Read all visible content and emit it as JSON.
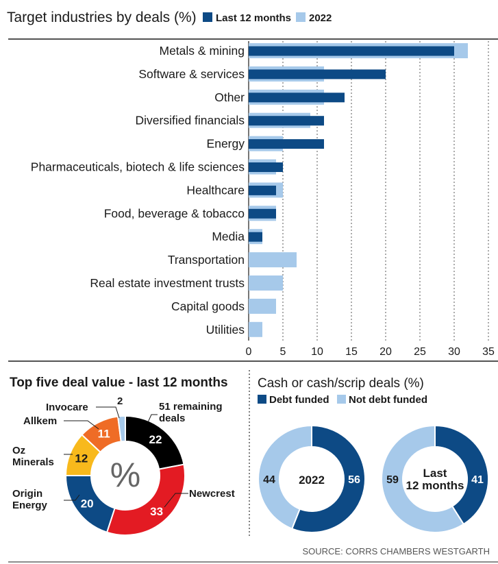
{
  "colors": {
    "dark_blue": "#0d4a85",
    "light_blue": "#a6c9ea",
    "red": "#e31b23",
    "black": "#000000",
    "orange": "#ef6c26",
    "yellow": "#f8b91c",
    "text": "#1a1a1a",
    "source_text": "#555555"
  },
  "chart_data": [
    {
      "type": "bar",
      "orientation": "horizontal",
      "title": "Target industries by deals (%)",
      "categories": [
        "Metals & mining",
        "Software & services",
        "Other",
        "Diversified financials",
        "Energy",
        "Pharmaceuticals, biotech & life sciences",
        "Healthcare",
        "Food, beverage & tobacco",
        "Media",
        "Transportation",
        "Real estate investment trusts",
        "Capital goods",
        "Utilities"
      ],
      "series": [
        {
          "name": "Last 12 months",
          "color": "#0d4a85",
          "values": [
            30,
            20,
            14,
            11,
            11,
            5,
            4,
            4,
            2,
            0,
            0,
            0,
            0
          ]
        },
        {
          "name": "2022",
          "color": "#a6c9ea",
          "values": [
            32,
            11,
            11,
            9,
            5,
            4,
            5,
            4,
            2,
            7,
            5,
            4,
            2
          ]
        }
      ],
      "xlim": [
        0,
        35
      ],
      "xticks": [
        "0",
        "5",
        "10",
        "15",
        "20",
        "25",
        "30",
        "35"
      ],
      "grid": true,
      "legend": "top"
    },
    {
      "type": "pie",
      "variant": "donut",
      "title": "Top five deal value - last 12 months",
      "center_label": "%",
      "slices": [
        {
          "label": "51 remaining deals",
          "value": 22,
          "value_label": "22",
          "color": "#000000"
        },
        {
          "label": "Newcrest",
          "value": 33,
          "value_label": "33",
          "color": "#e31b23"
        },
        {
          "label": "Origin Energy",
          "value": 20,
          "value_label": "20",
          "color": "#0d4a85"
        },
        {
          "label": "Oz Minerals",
          "value": 12,
          "value_label": "12",
          "color": "#f8b91c"
        },
        {
          "label": "Allkem",
          "value": 11,
          "value_label": "11",
          "color": "#ef6c26"
        },
        {
          "label": "Invocare",
          "value": 2,
          "value_label": "2",
          "color": "#a6c9ea"
        }
      ]
    },
    {
      "type": "pie",
      "variant": "donut",
      "title": "Cash or cash/scrip deals (%)",
      "legend": [
        "Debt funded",
        "Not debt funded"
      ],
      "charts": [
        {
          "center_label": "2022",
          "slices": [
            {
              "label": "Debt funded",
              "value": 56,
              "value_label": "56",
              "color": "#0d4a85"
            },
            {
              "label": "Not debt funded",
              "value": 44,
              "value_label": "44",
              "color": "#a6c9ea"
            }
          ]
        },
        {
          "center_label": "Last 12 months",
          "slices": [
            {
              "label": "Debt funded",
              "value": 41,
              "value_label": "41",
              "color": "#0d4a85"
            },
            {
              "label": "Not debt funded",
              "value": 59,
              "value_label": "59",
              "color": "#a6c9ea"
            }
          ]
        }
      ]
    }
  ],
  "source": "SOURCE: CORRS CHAMBERS WESTGARTH"
}
